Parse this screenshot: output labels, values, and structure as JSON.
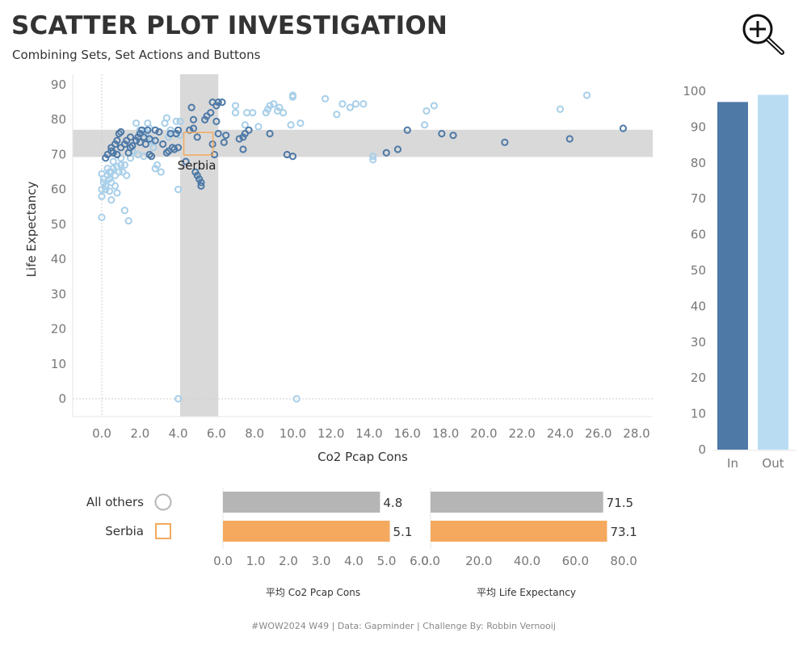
{
  "title": "SCATTER PLOT INVESTIGATION",
  "subtitle": "Combining Sets, Set Actions and Buttons",
  "footer": "#WOW2024 W49 | Data: Gapminder | Challenge By: Robbin Vernooij",
  "icons": {
    "zoom": "zoom-in-icon"
  },
  "colors": {
    "in_set": "#4e79a7",
    "out_set": "#a8cfe9",
    "highlight": "#f4a95e",
    "others": "#b5b5b5",
    "band": "#d9d9d9"
  },
  "chart_data": [
    {
      "type": "scatter",
      "title": "",
      "xlabel": "Co2 Pcap Cons",
      "ylabel": "Life Expectancy",
      "xlim": [
        -1.5,
        29
      ],
      "ylim": [
        -5,
        92
      ],
      "x_ticks": [
        "0.0",
        "2.0",
        "4.0",
        "6.0",
        "8.0",
        "10.0",
        "12.0",
        "14.0",
        "16.0",
        "18.0",
        "20.0",
        "22.0",
        "24.0",
        "26.0",
        "28.0"
      ],
      "y_ticks": [
        "0",
        "10",
        "20",
        "30",
        "40",
        "50",
        "60",
        "70",
        "80",
        "90"
      ],
      "band_x": [
        4.1,
        6.1
      ],
      "band_y": [
        69.3,
        77.1
      ],
      "highlight": {
        "label": "Serbia",
        "x": 5.1,
        "y": 73.1
      },
      "series": [
        {
          "name": "In",
          "points": [
            [
              0.2,
              69
            ],
            [
              0.3,
              70
            ],
            [
              0.5,
              71
            ],
            [
              0.5,
              72
            ],
            [
              0.6,
              70.5
            ],
            [
              0.7,
              73
            ],
            [
              0.8,
              74
            ],
            [
              0.8,
              70
            ],
            [
              0.9,
              76
            ],
            [
              1.0,
              72
            ],
            [
              1.0,
              76.5
            ],
            [
              1.2,
              73
            ],
            [
              1.3,
              74
            ],
            [
              1.4,
              70.5
            ],
            [
              1.5,
              72
            ],
            [
              1.5,
              75
            ],
            [
              1.6,
              72.5
            ],
            [
              1.8,
              74
            ],
            [
              1.9,
              75
            ],
            [
              2.0,
              73.5
            ],
            [
              2.0,
              76
            ],
            [
              2.1,
              77
            ],
            [
              2.2,
              75
            ],
            [
              2.3,
              73
            ],
            [
              2.4,
              77
            ],
            [
              2.5,
              74.5
            ],
            [
              2.5,
              70
            ],
            [
              2.6,
              69.5
            ],
            [
              2.8,
              74
            ],
            [
              2.8,
              77
            ],
            [
              3.0,
              76.5
            ],
            [
              3.2,
              73
            ],
            [
              3.4,
              70.5
            ],
            [
              3.5,
              71
            ],
            [
              3.6,
              76
            ],
            [
              3.7,
              72
            ],
            [
              3.8,
              71.5
            ],
            [
              3.9,
              76
            ],
            [
              4.0,
              72
            ],
            [
              4.0,
              77
            ],
            [
              4.4,
              68
            ],
            [
              4.6,
              77
            ],
            [
              4.7,
              83.5
            ],
            [
              4.8,
              80
            ],
            [
              4.8,
              77.5
            ],
            [
              4.9,
              65
            ],
            [
              5.0,
              75
            ],
            [
              5.0,
              64
            ],
            [
              5.1,
              63
            ],
            [
              5.2,
              62
            ],
            [
              5.2,
              61
            ],
            [
              5.4,
              80
            ],
            [
              5.5,
              81
            ],
            [
              5.7,
              82
            ],
            [
              5.8,
              85
            ],
            [
              5.8,
              73
            ],
            [
              5.9,
              70
            ],
            [
              6.0,
              84
            ],
            [
              6.0,
              79.5
            ],
            [
              6.1,
              76
            ],
            [
              6.1,
              85
            ],
            [
              6.3,
              85
            ],
            [
              6.4,
              73.5
            ],
            [
              6.5,
              75.5
            ],
            [
              7.2,
              74.5
            ],
            [
              7.4,
              71.5
            ],
            [
              7.4,
              75
            ],
            [
              7.5,
              76
            ],
            [
              7.7,
              77
            ],
            [
              8.8,
              76
            ],
            [
              9.7,
              70
            ],
            [
              10.0,
              69.5
            ],
            [
              14.9,
              70.5
            ],
            [
              15.5,
              71.5
            ],
            [
              16.0,
              77
            ],
            [
              17.8,
              76
            ],
            [
              18.4,
              75.5
            ],
            [
              21.1,
              73.5
            ],
            [
              24.5,
              74.5
            ],
            [
              27.3,
              77.5
            ]
          ]
        },
        {
          "name": "Out",
          "points": [
            [
              0.0,
              52
            ],
            [
              0.0,
              58
            ],
            [
              0.0,
              60
            ],
            [
              0.0,
              64.5
            ],
            [
              0.1,
              63
            ],
            [
              0.1,
              62
            ],
            [
              0.2,
              61
            ],
            [
              0.2,
              60
            ],
            [
              0.3,
              64
            ],
            [
              0.3,
              66
            ],
            [
              0.4,
              59.5
            ],
            [
              0.4,
              63
            ],
            [
              0.4,
              65
            ],
            [
              0.5,
              62
            ],
            [
              0.5,
              57
            ],
            [
              0.5,
              65
            ],
            [
              0.6,
              66
            ],
            [
              0.6,
              68
            ],
            [
              0.7,
              61
            ],
            [
              0.7,
              64
            ],
            [
              0.8,
              59
            ],
            [
              0.8,
              66.5
            ],
            [
              0.9,
              65
            ],
            [
              1.0,
              67
            ],
            [
              1.0,
              69
            ],
            [
              1.1,
              65
            ],
            [
              1.2,
              54
            ],
            [
              1.2,
              67
            ],
            [
              1.3,
              64
            ],
            [
              1.4,
              51
            ],
            [
              1.5,
              69
            ],
            [
              1.6,
              71
            ],
            [
              1.8,
              79
            ],
            [
              1.9,
              70
            ],
            [
              2.0,
              77
            ],
            [
              2.2,
              69.5
            ],
            [
              2.3,
              76
            ],
            [
              2.4,
              79
            ],
            [
              2.5,
              77.5
            ],
            [
              2.6,
              74
            ],
            [
              2.7,
              72
            ],
            [
              2.8,
              66
            ],
            [
              2.9,
              67
            ],
            [
              3.1,
              65
            ],
            [
              3.3,
              79
            ],
            [
              3.4,
              80.5
            ],
            [
              3.5,
              75
            ],
            [
              3.6,
              77
            ],
            [
              3.9,
              79.5
            ],
            [
              4.0,
              60
            ],
            [
              4.1,
              79.5
            ],
            [
              4.1,
              75.5
            ],
            [
              4.0,
              0
            ],
            [
              7.0,
              84
            ],
            [
              7.0,
              82
            ],
            [
              7.5,
              78.5
            ],
            [
              7.6,
              82
            ],
            [
              7.9,
              82
            ],
            [
              8.2,
              78
            ],
            [
              8.6,
              82
            ],
            [
              8.7,
              83
            ],
            [
              8.8,
              84
            ],
            [
              9.0,
              84.5
            ],
            [
              9.2,
              82.5
            ],
            [
              9.3,
              83.5
            ],
            [
              9.5,
              82
            ],
            [
              9.9,
              78.5
            ],
            [
              10.0,
              87
            ],
            [
              10.0,
              86.5
            ],
            [
              10.4,
              79
            ],
            [
              10.2,
              0
            ],
            [
              11.7,
              86
            ],
            [
              12.3,
              81.5
            ],
            [
              12.6,
              84.5
            ],
            [
              13.0,
              83.5
            ],
            [
              13.3,
              84.5
            ],
            [
              13.7,
              84.5
            ],
            [
              14.2,
              68.5
            ],
            [
              14.2,
              69.5
            ],
            [
              16.9,
              78.5
            ],
            [
              17.0,
              82.5
            ],
            [
              17.4,
              84
            ],
            [
              24.0,
              83
            ],
            [
              25.4,
              87
            ]
          ]
        }
      ]
    },
    {
      "type": "bar",
      "title": "",
      "categories": [
        "In",
        "Out"
      ],
      "values": [
        97,
        99
      ],
      "ylim": [
        0,
        102
      ],
      "y_ticks": [
        "0",
        "10",
        "20",
        "30",
        "40",
        "50",
        "60",
        "70",
        "80",
        "90",
        "100"
      ]
    },
    {
      "type": "bar",
      "orientation": "horizontal",
      "title": "",
      "xlabel": "平均 Co2 Pcap Cons",
      "categories": [
        "All others",
        "Serbia"
      ],
      "values": [
        4.8,
        5.1
      ],
      "value_labels": [
        "4.8",
        "5.1"
      ],
      "xlim": [
        0,
        6
      ],
      "x_ticks": [
        "0.0",
        "1.0",
        "2.0",
        "3.0",
        "4.0",
        "5.0",
        "6.0"
      ]
    },
    {
      "type": "bar",
      "orientation": "horizontal",
      "title": "",
      "xlabel": "平均 Life Expectancy",
      "categories": [
        "All others",
        "Serbia"
      ],
      "values": [
        71.5,
        73.1
      ],
      "value_labels": [
        "71.5",
        "73.1"
      ],
      "xlim": [
        0,
        86
      ],
      "x_ticks": [
        "0.0",
        "20.0",
        "40.0",
        "60.0",
        "80.0"
      ]
    }
  ]
}
